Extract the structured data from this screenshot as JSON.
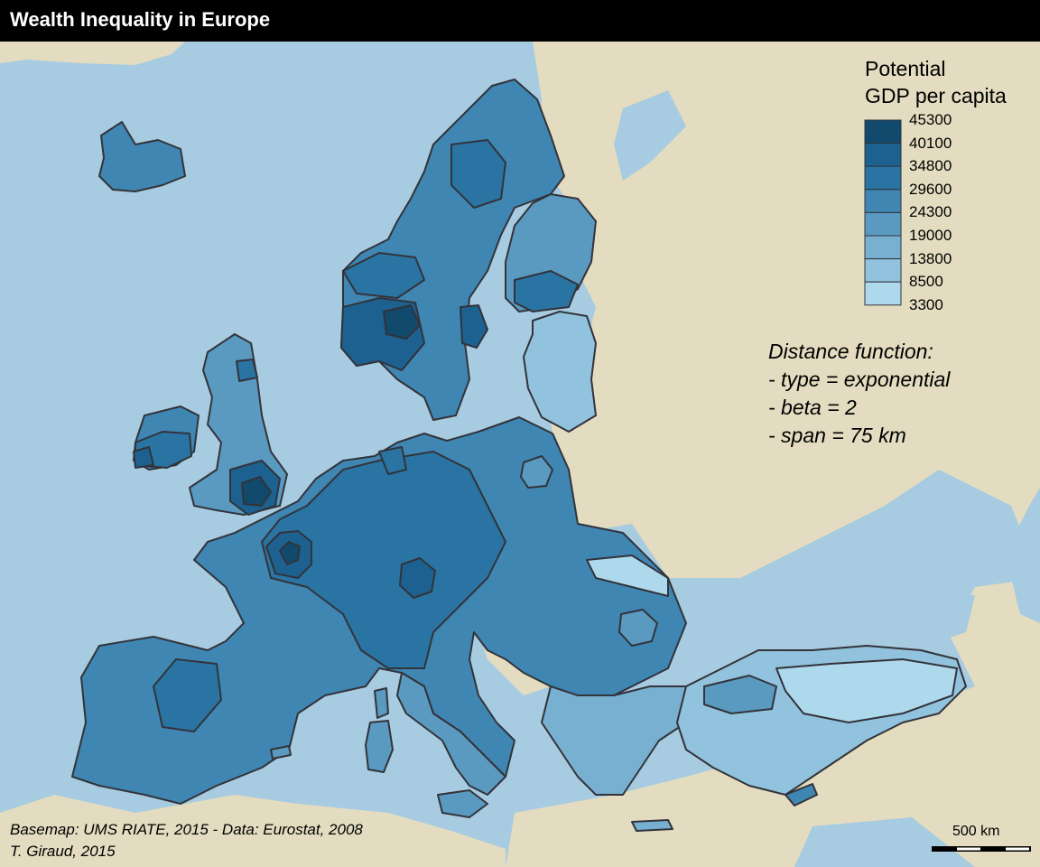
{
  "title": "Wealth Inequality in Europe",
  "legend": {
    "title_line1": "Potential",
    "title_line2": "GDP per capita",
    "breaks": [
      "45300",
      "40100",
      "34800",
      "29600",
      "24300",
      "19000",
      "13800",
      "8500",
      "3300"
    ],
    "classes": [
      {
        "color": "#124a6e"
      },
      {
        "color": "#1c6190"
      },
      {
        "color": "#2a74a3"
      },
      {
        "color": "#3f86b3"
      },
      {
        "color": "#5a9ac1"
      },
      {
        "color": "#78b0d1"
      },
      {
        "color": "#92c3de"
      },
      {
        "color": "#aed8ec"
      }
    ]
  },
  "note": {
    "line1": "Distance function:",
    "line2": "- type = exponential",
    "line3": "- beta = 2",
    "line4": "- span = 75 km"
  },
  "credits": {
    "line1": "Basemap: UMS RIATE, 2015 - Data: Eurostat, 2008",
    "line2": "T. Giraud, 2015"
  },
  "scale_bar": {
    "label": "500 km"
  },
  "colors": {
    "sea": "#a7cbe0",
    "neighbor_land": "#e3dcc0",
    "title_bar": "#000000",
    "border": "#33333a"
  }
}
